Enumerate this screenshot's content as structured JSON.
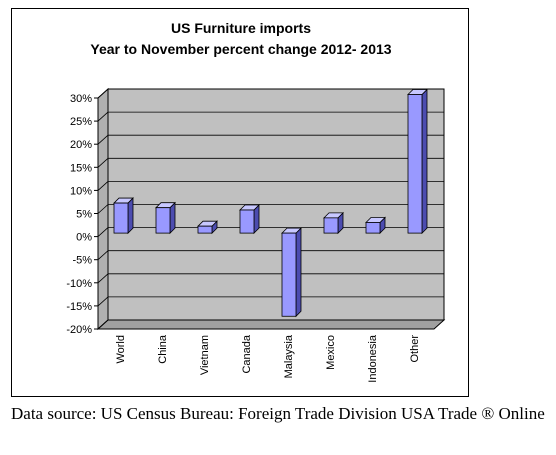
{
  "chart_data": {
    "type": "bar",
    "title": "US Furniture imports",
    "subtitle": "Year to November percent change 2012- 2013",
    "categories": [
      "World",
      "China",
      "Vietnam",
      "Canada",
      "Malaysia",
      "Mexico",
      "Indonesia",
      "Other"
    ],
    "values": [
      6.5,
      5.5,
      1.5,
      5,
      -18,
      3.3,
      2.3,
      30
    ],
    "ylim": [
      -20,
      30
    ],
    "yticks": [
      30,
      25,
      20,
      15,
      10,
      5,
      0,
      -5,
      -10,
      -15,
      -20
    ],
    "ytick_labels": [
      "30%",
      "25%",
      "20%",
      "15%",
      "10%",
      "5%",
      "0%",
      "-5%",
      "-10%",
      "-15%",
      "-20%"
    ],
    "xlabel": "",
    "ylabel": "",
    "grid": true,
    "legend": "none",
    "colors": {
      "bar_front": "#9999ff",
      "bar_side": "#4c4cb0",
      "bar_top": "#c8c8ff",
      "plot_wall": "#c0c0c0",
      "plot_floor": "#a0a0a0"
    }
  },
  "caption": "Data source: US Census Bureau: Foreign Trade Division USA Trade ® Online"
}
